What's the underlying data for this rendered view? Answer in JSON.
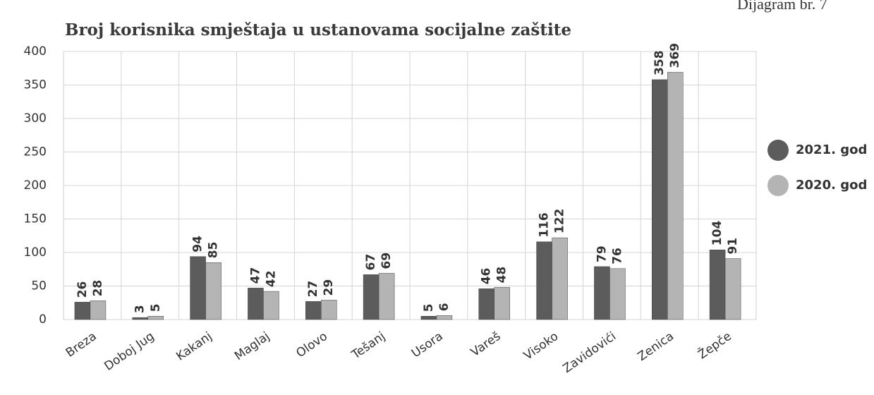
{
  "page_note": "Dijagram br. 7",
  "chart_data": {
    "type": "bar",
    "title": "Broj korisnika smještaja u ustanovama socijalne zaštite",
    "categories": [
      "Breza",
      "Doboj Jug",
      "Kakanj",
      "Maglaj",
      "Olovo",
      "Tešanj",
      "Usora",
      "Vareš",
      "Visoko",
      "Zavidovići",
      "Zenica",
      "Žepče"
    ],
    "series": [
      {
        "name": "2021. god",
        "color": "#5c5c5c",
        "values": [
          26,
          3,
          94,
          47,
          27,
          67,
          5,
          46,
          116,
          79,
          358,
          104
        ]
      },
      {
        "name": "2020. god",
        "color": "#b4b4b4",
        "values": [
          28,
          5,
          85,
          42,
          29,
          69,
          6,
          48,
          122,
          76,
          369,
          91
        ]
      }
    ],
    "ylim": [
      0,
      400
    ],
    "yticks": [
      0,
      50,
      100,
      150,
      200,
      250,
      300,
      350,
      400
    ],
    "grid": true,
    "legend": "right"
  }
}
